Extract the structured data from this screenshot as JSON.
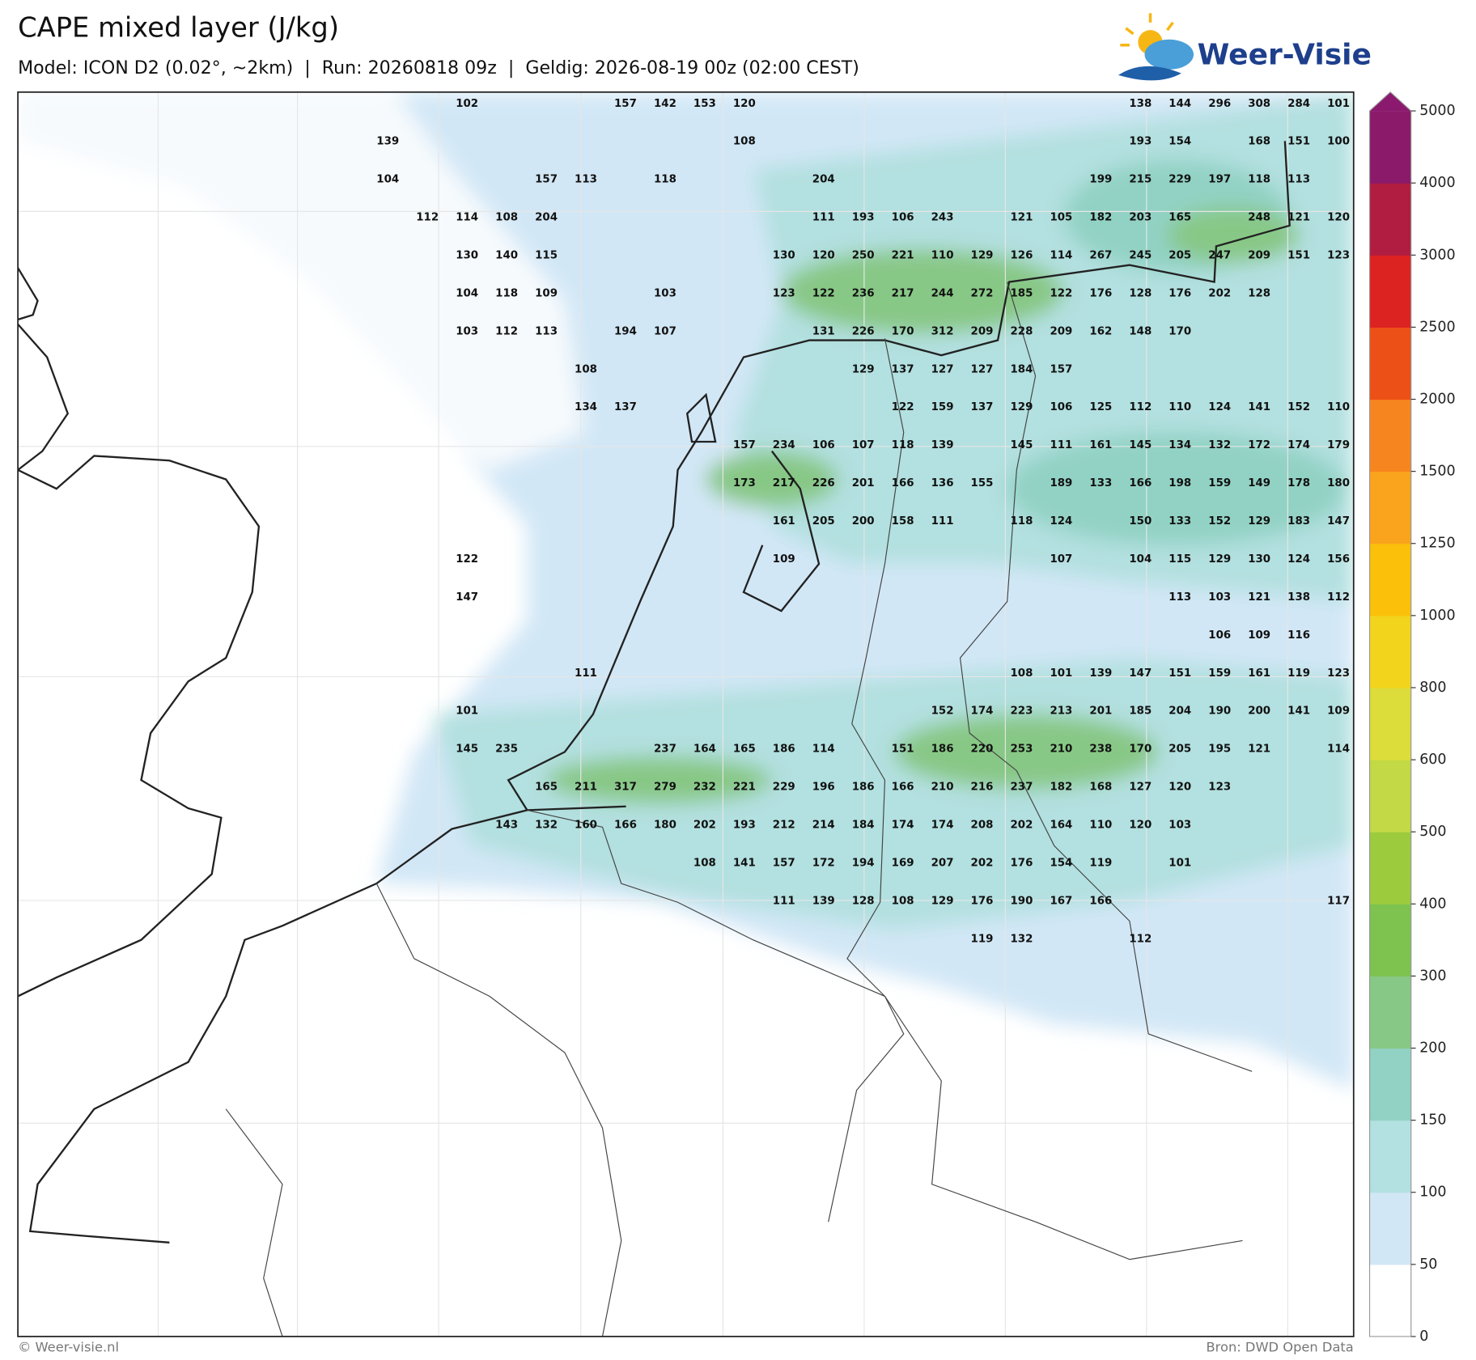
{
  "header": {
    "title": "CAPE mixed layer (J/kg)",
    "subtitle": "Model: ICON D2 (0.02°, ~2km)  |  Run: 20260818 09z  |  Geldig: 2026-08-19 00z (02:00 CEST)"
  },
  "logo": "Weer-Visie",
  "map": {
    "labels": [
      [
        null,
        null,
        102,
        null,
        null,
        null,
        157,
        142,
        153,
        120,
        null,
        null,
        null,
        null,
        null,
        null,
        null,
        null,
        null,
        138,
        144,
        296,
        308,
        284,
        101
      ],
      [
        139,
        null,
        null,
        null,
        null,
        null,
        null,
        null,
        null,
        108,
        null,
        null,
        null,
        null,
        null,
        null,
        null,
        null,
        null,
        193,
        154,
        null,
        168,
        151,
        100
      ],
      [
        104,
        null,
        null,
        null,
        157,
        113,
        null,
        118,
        null,
        null,
        null,
        204,
        null,
        null,
        null,
        null,
        null,
        null,
        199,
        215,
        229,
        197,
        118,
        113,
        null
      ],
      [
        null,
        112,
        114,
        108,
        204,
        null,
        null,
        null,
        null,
        null,
        null,
        111,
        193,
        106,
        243,
        null,
        121,
        105,
        182,
        203,
        165,
        null,
        248,
        121,
        120
      ],
      [
        null,
        null,
        130,
        140,
        115,
        null,
        null,
        null,
        null,
        null,
        130,
        120,
        250,
        221,
        110,
        129,
        126,
        114,
        267,
        245,
        205,
        247,
        209,
        151,
        123
      ],
      [
        null,
        null,
        104,
        118,
        109,
        null,
        null,
        103,
        null,
        null,
        123,
        122,
        236,
        217,
        244,
        272,
        185,
        122,
        176,
        128,
        176,
        202,
        128,
        null,
        null
      ],
      [
        null,
        null,
        103,
        112,
        113,
        null,
        194,
        107,
        null,
        null,
        null,
        131,
        226,
        170,
        312,
        209,
        228,
        209,
        162,
        148,
        170,
        null,
        null,
        null,
        null
      ],
      [
        null,
        null,
        null,
        null,
        null,
        108,
        null,
        null,
        null,
        null,
        null,
        null,
        129,
        137,
        127,
        127,
        184,
        157,
        null,
        null,
        null,
        null,
        null,
        null,
        null
      ],
      [
        null,
        null,
        null,
        null,
        null,
        134,
        137,
        null,
        null,
        null,
        null,
        null,
        null,
        122,
        159,
        137,
        129,
        106,
        125,
        112,
        110,
        124,
        141,
        152,
        110
      ],
      [
        null,
        null,
        null,
        null,
        null,
        null,
        null,
        null,
        null,
        157,
        234,
        106,
        107,
        118,
        139,
        null,
        145,
        111,
        161,
        145,
        134,
        132,
        172,
        174,
        179
      ],
      [
        null,
        null,
        null,
        null,
        null,
        null,
        null,
        null,
        null,
        173,
        217,
        226,
        201,
        166,
        136,
        155,
        null,
        189,
        133,
        166,
        198,
        159,
        149,
        178,
        180
      ],
      [
        null,
        null,
        null,
        null,
        null,
        null,
        null,
        null,
        null,
        null,
        161,
        205,
        200,
        158,
        111,
        null,
        118,
        124,
        null,
        150,
        133,
        152,
        129,
        183,
        147
      ],
      [
        null,
        null,
        122,
        null,
        null,
        null,
        null,
        null,
        null,
        null,
        109,
        null,
        null,
        null,
        null,
        null,
        null,
        107,
        null,
        104,
        115,
        129,
        130,
        124,
        156
      ],
      [
        null,
        null,
        147,
        null,
        null,
        null,
        null,
        null,
        null,
        null,
        null,
        null,
        null,
        null,
        null,
        null,
        null,
        null,
        null,
        null,
        113,
        103,
        121,
        138,
        112
      ],
      [
        null,
        null,
        null,
        null,
        null,
        null,
        null,
        null,
        null,
        null,
        null,
        null,
        null,
        null,
        null,
        null,
        null,
        null,
        null,
        null,
        null,
        106,
        109,
        116,
        null
      ],
      [
        null,
        null,
        null,
        null,
        null,
        111,
        null,
        null,
        null,
        null,
        null,
        null,
        null,
        null,
        null,
        null,
        108,
        101,
        139,
        147,
        151,
        159,
        161,
        119,
        123
      ],
      [
        null,
        null,
        101,
        null,
        null,
        null,
        null,
        null,
        null,
        null,
        null,
        null,
        null,
        null,
        152,
        174,
        223,
        213,
        201,
        185,
        204,
        190,
        200,
        141,
        109
      ],
      [
        null,
        null,
        145,
        235,
        null,
        null,
        null,
        237,
        164,
        165,
        186,
        114,
        null,
        151,
        186,
        220,
        253,
        210,
        238,
        170,
        205,
        195,
        121,
        null,
        114
      ],
      [
        null,
        null,
        null,
        null,
        165,
        211,
        317,
        279,
        232,
        221,
        229,
        196,
        186,
        166,
        210,
        216,
        237,
        182,
        168,
        127,
        120,
        123,
        null,
        null,
        null
      ],
      [
        null,
        null,
        null,
        143,
        132,
        160,
        166,
        180,
        202,
        193,
        212,
        214,
        184,
        174,
        174,
        208,
        202,
        164,
        110,
        120,
        103,
        null,
        null,
        null,
        null
      ],
      [
        null,
        null,
        null,
        null,
        null,
        null,
        null,
        null,
        108,
        141,
        157,
        172,
        194,
        169,
        207,
        202,
        176,
        154,
        119,
        null,
        101,
        null,
        null,
        null,
        null
      ],
      [
        null,
        null,
        null,
        null,
        null,
        null,
        null,
        null,
        null,
        null,
        111,
        139,
        128,
        108,
        129,
        176,
        190,
        167,
        166,
        null,
        null,
        null,
        null,
        null,
        117
      ],
      [
        null,
        null,
        null,
        null,
        null,
        null,
        null,
        null,
        null,
        null,
        null,
        null,
        null,
        null,
        null,
        119,
        132,
        null,
        null,
        112,
        null,
        null,
        null,
        null,
        null
      ]
    ]
  },
  "colorbar": {
    "ticks": [
      0,
      50,
      100,
      150,
      200,
      300,
      400,
      500,
      600,
      800,
      1000,
      1250,
      1500,
      2000,
      2500,
      3000,
      4000,
      5000
    ],
    "colors": [
      "#ffffff",
      "#d2e7f6",
      "#b3e0e0",
      "#92d2c4",
      "#88c886",
      "#7ec250",
      "#9ccb3e",
      "#c3d945",
      "#dcdc3a",
      "#f2d41c",
      "#fbc00a",
      "#f9a41c",
      "#f7851f",
      "#ec5017",
      "#dd2222",
      "#b11d40",
      "#8b1a6a"
    ],
    "extend_color": "#8b1a6f"
  },
  "footer": {
    "left": "© Weer-visie.nl",
    "right": "Bron: DWD Open Data"
  }
}
